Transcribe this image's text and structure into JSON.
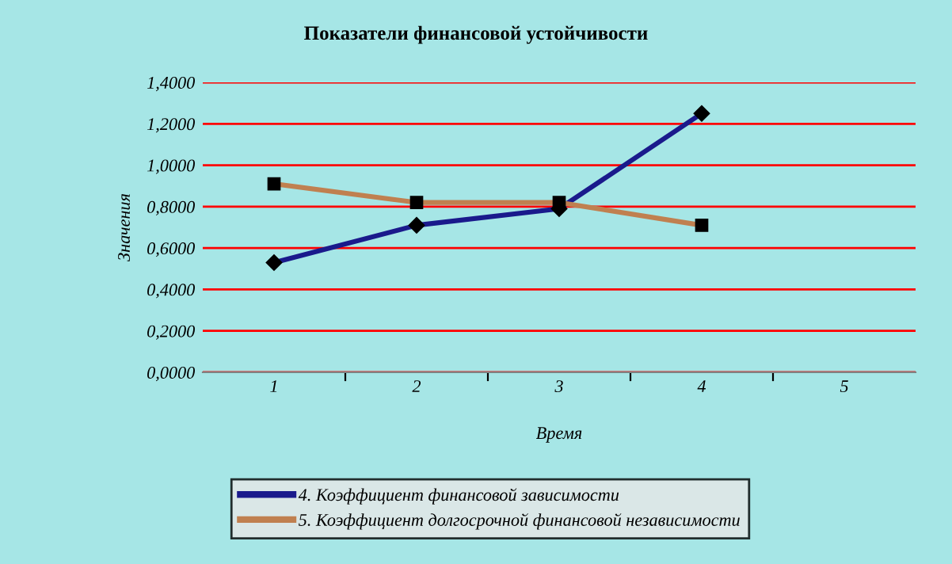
{
  "chart_data": {
    "type": "line",
    "title": "Показатели финансовой устойчивости",
    "xlabel": "Время",
    "ylabel": "Значения",
    "categories": [
      "1",
      "2",
      "3",
      "4",
      "5"
    ],
    "series": [
      {
        "name": "4. Коэффициент финансовой зависимости",
        "color": "#1a1a8c",
        "values": [
          0.53,
          0.71,
          0.79,
          1.25,
          null
        ],
        "marker": "diamond"
      },
      {
        "name": "5. Коэффициент долгосрочной финансовой независимости",
        "color": "#c08050",
        "values": [
          0.91,
          0.82,
          0.82,
          0.71,
          null
        ],
        "marker": "square"
      }
    ],
    "ylim": [
      0,
      1.4
    ],
    "yticks": [
      {
        "value": 0,
        "label": "0,0000"
      },
      {
        "value": 0.2,
        "label": "0,2000"
      },
      {
        "value": 0.4,
        "label": "0,4000"
      },
      {
        "value": 0.6,
        "label": "0,6000"
      },
      {
        "value": 0.8,
        "label": "0,8000"
      },
      {
        "value": 1.0,
        "label": "1,0000"
      },
      {
        "value": 1.2,
        "label": "1,2000"
      },
      {
        "value": 1.4,
        "label": "1,4000"
      }
    ],
    "grid": "y",
    "legend": "bottom",
    "line_style": "solid"
  }
}
